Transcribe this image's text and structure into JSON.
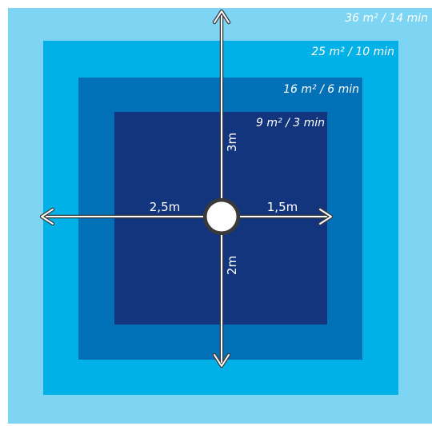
{
  "zones": [
    {
      "label": "36 m² / 14 min",
      "color": "#7dd4f3"
    },
    {
      "label": "25 m² / 10 min",
      "color": "#00b1e8"
    },
    {
      "label": "16 m² / 6 min",
      "color": "#0070b7"
    },
    {
      "label": "9 m² / 3 min",
      "color": "#13357d"
    }
  ],
  "distances": {
    "up": "3m",
    "down": "2m",
    "left": "2,5m",
    "right": "1,5m"
  },
  "colors": {
    "arrow": "#ffffff",
    "arrow_outline": "#3a3a3a",
    "center_fill": "#ffffff"
  }
}
